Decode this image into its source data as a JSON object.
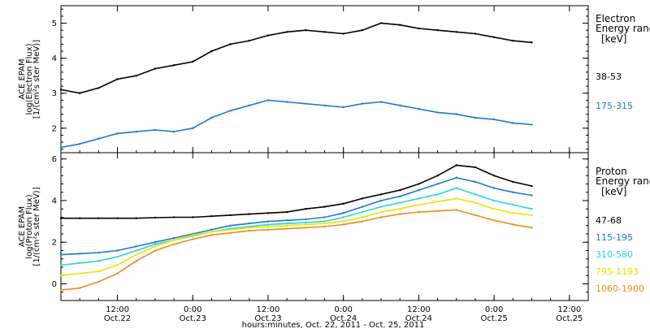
{
  "xlabel": "hours:minutes, Oct. 22, 2011 - Oct. 25, 2011",
  "x_ticks": [
    {
      "hour": 12,
      "label1": "12:00",
      "label2": "Oct.22"
    },
    {
      "hour": 24,
      "label1": "0:00",
      "label2": "Oct.23"
    },
    {
      "hour": 36,
      "label1": "12:00",
      "label2": "Oct.23"
    },
    {
      "hour": 48,
      "label1": "0:00",
      "label2": "Oct.24"
    },
    {
      "hour": 60,
      "label1": "12:00",
      "label2": "Oct.24"
    },
    {
      "hour": 72,
      "label1": "0:00",
      "label2": "Oct.25"
    },
    {
      "hour": 84,
      "label1": "12:00",
      "label2": "Oct.25"
    }
  ],
  "chart_data": [
    {
      "type": "line",
      "title": "",
      "ylabel_lines": [
        "ACE EPAM",
        "log(Electron Flux)",
        "[1/(cm²s ster MeV)]"
      ],
      "xlim": [
        3,
        87
      ],
      "ylim": [
        1.3,
        5.5
      ],
      "yticks": [
        2,
        3,
        4,
        5
      ],
      "grid": false,
      "legend": {
        "position": "right",
        "heading": [
          "Electron",
          "Energy ranges"
        ],
        "unit": "[keV]"
      },
      "x": [
        3,
        6,
        9,
        12,
        15,
        18,
        21,
        24,
        27,
        30,
        33,
        36,
        39,
        42,
        45,
        48,
        51,
        54,
        57,
        60,
        63,
        66,
        69,
        72,
        75,
        78
      ],
      "series": [
        {
          "name": "38-53",
          "color": "#000000",
          "values": [
            3.1,
            3.0,
            3.15,
            3.4,
            3.5,
            3.7,
            3.8,
            3.9,
            4.2,
            4.4,
            4.5,
            4.65,
            4.75,
            4.8,
            4.75,
            4.7,
            4.8,
            5.0,
            4.95,
            4.85,
            4.8,
            4.75,
            4.7,
            4.6,
            4.5,
            4.45
          ]
        },
        {
          "name": "175-315",
          "color": "#1e78d2",
          "values": [
            1.45,
            1.55,
            1.7,
            1.85,
            1.9,
            1.95,
            1.9,
            2.0,
            2.3,
            2.5,
            2.65,
            2.8,
            2.75,
            2.7,
            2.65,
            2.6,
            2.7,
            2.75,
            2.65,
            2.55,
            2.45,
            2.4,
            2.3,
            2.25,
            2.15,
            2.1
          ]
        }
      ]
    },
    {
      "type": "line",
      "title": "",
      "ylabel_lines": [
        "ACE EPAM",
        "log(Proton Flux)",
        "[1/(cm²s ster MeV)]"
      ],
      "xlim": [
        3,
        87
      ],
      "ylim": [
        -0.8,
        6.3
      ],
      "yticks": [
        0,
        2,
        4,
        6
      ],
      "grid": false,
      "legend": {
        "position": "right",
        "heading": [
          "Proton",
          "Energy ranges"
        ],
        "unit": "[keV]"
      },
      "x": [
        3,
        6,
        9,
        12,
        15,
        18,
        21,
        24,
        27,
        30,
        33,
        36,
        39,
        42,
        45,
        48,
        51,
        54,
        57,
        60,
        63,
        66,
        69,
        72,
        75,
        78
      ],
      "series": [
        {
          "name": "47-68",
          "color": "#000000",
          "values": [
            3.15,
            3.15,
            3.15,
            3.15,
            3.15,
            3.18,
            3.2,
            3.2,
            3.25,
            3.3,
            3.35,
            3.4,
            3.45,
            3.6,
            3.7,
            3.85,
            4.1,
            4.3,
            4.5,
            4.8,
            5.2,
            5.7,
            5.6,
            5.2,
            4.9,
            4.7
          ]
        },
        {
          "name": "115-195",
          "color": "#1e78d2",
          "values": [
            1.4,
            1.45,
            1.5,
            1.6,
            1.8,
            2.0,
            2.2,
            2.4,
            2.6,
            2.8,
            2.9,
            3.0,
            3.05,
            3.1,
            3.2,
            3.4,
            3.7,
            4.0,
            4.2,
            4.5,
            4.8,
            5.1,
            4.9,
            4.6,
            4.4,
            4.25
          ]
        },
        {
          "name": "310-580",
          "color": "#2ad6d6",
          "values": [
            0.9,
            1.0,
            1.1,
            1.3,
            1.6,
            1.9,
            2.1,
            2.3,
            2.5,
            2.65,
            2.75,
            2.85,
            2.9,
            2.95,
            3.0,
            3.2,
            3.45,
            3.7,
            3.9,
            4.1,
            4.3,
            4.6,
            4.3,
            4.0,
            3.8,
            3.6
          ]
        },
        {
          "name": "795-1193",
          "color": "#e6e600",
          "values": [
            0.4,
            0.5,
            0.6,
            0.9,
            1.4,
            1.8,
            2.1,
            2.35,
            2.5,
            2.6,
            2.7,
            2.75,
            2.8,
            2.85,
            2.9,
            3.0,
            3.2,
            3.45,
            3.6,
            3.8,
            3.95,
            4.1,
            3.9,
            3.6,
            3.4,
            3.3
          ]
        },
        {
          "name": "1060-1900",
          "color": "#f08a1c",
          "values": [
            -0.3,
            -0.2,
            0.1,
            0.5,
            1.1,
            1.6,
            1.9,
            2.15,
            2.35,
            2.45,
            2.55,
            2.6,
            2.65,
            2.7,
            2.75,
            2.85,
            3.0,
            3.2,
            3.35,
            3.45,
            3.5,
            3.55,
            3.3,
            3.05,
            2.85,
            2.7
          ]
        }
      ]
    }
  ]
}
